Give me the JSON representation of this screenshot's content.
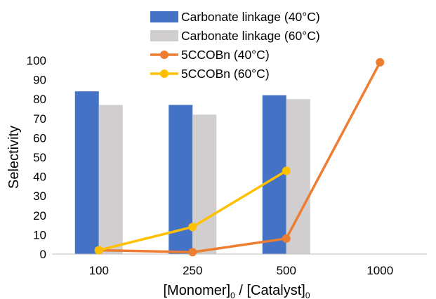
{
  "chart_data": {
    "type": "bar",
    "categories": [
      "100",
      "250",
      "500",
      "1000"
    ],
    "ylabel": "Selectivity",
    "xlabel": {
      "parts": [
        {
          "text": "[Monomer]",
          "sub": false
        },
        {
          "text": "0",
          "sub": true
        },
        {
          "text": " / [Catalyst]",
          "sub": false
        },
        {
          "text": "0",
          "sub": true
        }
      ]
    },
    "ylim": [
      0,
      100
    ],
    "yticks": [
      0,
      10,
      20,
      30,
      40,
      50,
      60,
      70,
      80,
      90,
      100
    ],
    "grid": false,
    "legend_position": "top",
    "series": [
      {
        "name": "Carbonate linkage (40°C)",
        "kind": "bar",
        "color": "#4472C4",
        "values": [
          84,
          77,
          82,
          null
        ]
      },
      {
        "name": "Carbonate linkage (60°C)",
        "kind": "bar",
        "color": "#D0CECE",
        "values": [
          77,
          72,
          80,
          null
        ]
      },
      {
        "name": "5CCOBn (40°C)",
        "kind": "line",
        "color": "#ED7D31",
        "values": [
          2,
          1,
          8,
          99
        ]
      },
      {
        "name": "5CCOBn (60°C)",
        "kind": "line",
        "color": "#FFC000",
        "values": [
          2,
          14,
          43,
          null
        ]
      }
    ]
  }
}
